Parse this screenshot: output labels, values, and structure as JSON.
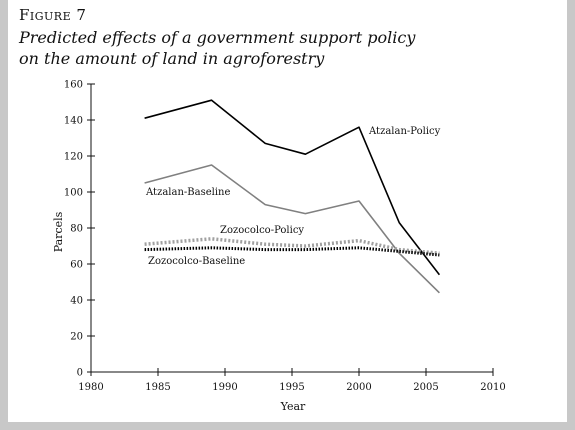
{
  "figure": {
    "label": "Figure 7",
    "title_line1": "Predicted effects of a government support policy",
    "title_line2": "on the amount of land in agroforestry"
  },
  "chart_data": {
    "type": "line",
    "xlabel": "Year",
    "ylabel": "Parcels",
    "xlim": [
      1980,
      2010
    ],
    "ylim": [
      0,
      160
    ],
    "xticks": [
      1980,
      1985,
      1990,
      1995,
      2000,
      2005,
      2010
    ],
    "yticks": [
      0,
      20,
      40,
      60,
      80,
      100,
      120,
      140,
      160
    ],
    "grid": false,
    "series": [
      {
        "name": "Atzalan-Policy",
        "color": "#000000",
        "style": "solid",
        "x": [
          1984,
          1989,
          1993,
          1996,
          2000,
          2003,
          2006
        ],
        "y": [
          141,
          151,
          127,
          121,
          136,
          83,
          54
        ]
      },
      {
        "name": "Atzalan-Baseline",
        "color": "#808080",
        "style": "solid",
        "x": [
          1984,
          1989,
          1993,
          1996,
          2000,
          2003,
          2006
        ],
        "y": [
          105,
          115,
          93,
          88,
          95,
          66,
          44
        ]
      },
      {
        "name": "Zozocolco-Policy",
        "color": "#a0a0a0",
        "style": "dotted-thick",
        "x": [
          1984,
          1989,
          1993,
          1996,
          2000,
          2003,
          2006
        ],
        "y": [
          71,
          74,
          71,
          70,
          73,
          68,
          66
        ]
      },
      {
        "name": "Zozocolco-Baseline",
        "color": "#000000",
        "style": "dashed-thick",
        "x": [
          1984,
          1989,
          1993,
          1996,
          2000,
          2003,
          2006
        ],
        "y": [
          68,
          69,
          68,
          68,
          69,
          67,
          65
        ]
      }
    ]
  }
}
